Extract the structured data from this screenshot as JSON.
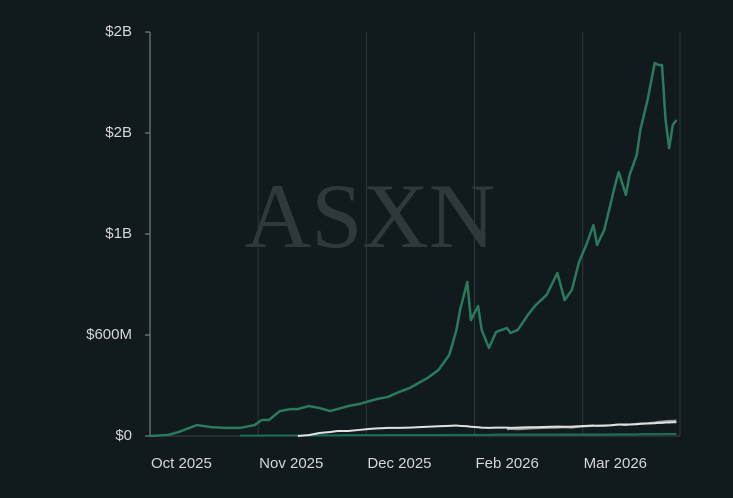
{
  "chart_data": {
    "type": "line",
    "watermark": "ASXN",
    "x": [
      0,
      5,
      8,
      13,
      17,
      21,
      25,
      29,
      31,
      33,
      36,
      39,
      41,
      44,
      47,
      50,
      52,
      55,
      58,
      61,
      63,
      66,
      69,
      72,
      74,
      77,
      80,
      83,
      85,
      86,
      88,
      89,
      91,
      92,
      94,
      96,
      99,
      100,
      102,
      105,
      107,
      110,
      113,
      115,
      117,
      119,
      121,
      123,
      124,
      126,
      128,
      129,
      130,
      132,
      133,
      135,
      136,
      138,
      140,
      141,
      142,
      143,
      144,
      145,
      146
    ],
    "xlim": [
      0,
      147
    ],
    "xticks": [
      {
        "value": 0,
        "label": "Oct 2025"
      },
      {
        "value": 30,
        "label": "Nov 2025"
      },
      {
        "value": 60,
        "label": "Dec 2025"
      },
      {
        "value": 90,
        "label": "Feb 2026"
      },
      {
        "value": 120,
        "label": "Mar 2026"
      }
    ],
    "ylim": [
      0,
      2400000000
    ],
    "yticks": [
      {
        "value": 0,
        "label": "$0"
      },
      {
        "value": 600000000,
        "label": "$600M"
      },
      {
        "value": 1200000000,
        "label": "$1B"
      },
      {
        "value": 1800000000,
        "label": "$2B"
      },
      {
        "value": 2400000000,
        "label": "$2B"
      }
    ],
    "grid": true,
    "series": [
      {
        "color": "#2a7a5e",
        "values": [
          0,
          6000000.0,
          24000000.0,
          65000000.0,
          53000000.0,
          48000000.0,
          48000000.0,
          65000000.0,
          95000000.0,
          95000000.0,
          148000000.0,
          160000000.0,
          160000000.0,
          178000000.0,
          166000000.0,
          148000000.0,
          160000000.0,
          178000000.0,
          190000000.0,
          208000000.0,
          220000000.0,
          232000000.0,
          261000000.0,
          285000000.0,
          309000000.0,
          345000000.0,
          392000000.0,
          481000000.0,
          630000000.0,
          748000000.0,
          915000000.0,
          689000000.0,
          772000000.0,
          630000000.0,
          523000000.0,
          618000000.0,
          641000000.0,
          612000000.0,
          630000000.0,
          725000000.0,
          778000000.0,
          838000000.0,
          968000000.0,
          808000000.0,
          867000000.0,
          1034000000.0,
          1135000000.0,
          1253000000.0,
          1135000000.0,
          1224000000.0,
          1402000000.0,
          1491000000.0,
          1568000000.0,
          1432000000.0,
          1550000000.0,
          1669000000.0,
          1818000000.0,
          1996000000.0,
          2216000000.0,
          2204000000.0,
          2204000000.0,
          1877000000.0,
          1711000000.0,
          1847000000.0,
          1877000000.0
        ]
      },
      {
        "color": "#1d6e57",
        "values": [
          null,
          null,
          null,
          null,
          null,
          null,
          2000000.0,
          2000000.0,
          2000000.0,
          3000000.0,
          3000000.0,
          3000000.0,
          3000000.0,
          4000000.0,
          4000000.0,
          4000000.0,
          4000000.0,
          5000000.0,
          5000000.0,
          5000000.0,
          5000000.0,
          6000000.0,
          6000000.0,
          6000000.0,
          6000000.0,
          6000000.0,
          6000000.0,
          7000000.0,
          7000000.0,
          7000000.0,
          7000000.0,
          7000000.0,
          7000000.0,
          7000000.0,
          7000000.0,
          8000000.0,
          8000000.0,
          8000000.0,
          8000000.0,
          8000000.0,
          8000000.0,
          8000000.0,
          8000000.0,
          9000000.0,
          9000000.0,
          9000000.0,
          9000000.0,
          9000000.0,
          9000000.0,
          9000000.0,
          10000000.0,
          10000000.0,
          10000000.0,
          10000000.0,
          10000000.0,
          10000000.0,
          11000000.0,
          11000000.0,
          11000000.0,
          11000000.0,
          11000000.0,
          12000000.0,
          12000000.0,
          12000000.0,
          12000000.0
        ]
      },
      {
        "color": "#9a9a9a",
        "values": [
          null,
          null,
          null,
          null,
          null,
          null,
          null,
          null,
          null,
          null,
          null,
          null,
          null,
          null,
          null,
          null,
          null,
          null,
          null,
          null,
          null,
          null,
          null,
          null,
          null,
          null,
          null,
          null,
          null,
          null,
          null,
          null,
          null,
          null,
          null,
          null,
          40000000.0,
          42000000.0,
          40000000.0,
          44000000.0,
          46000000.0,
          48000000.0,
          50000000.0,
          52000000.0,
          50000000.0,
          55000000.0,
          58000000.0,
          60000000.0,
          62000000.0,
          60000000.0,
          64000000.0,
          66000000.0,
          68000000.0,
          70000000.0,
          68000000.0,
          72000000.0,
          74000000.0,
          76000000.0,
          80000000.0,
          84000000.0,
          86000000.0,
          88000000.0,
          90000000.0,
          90000000.0,
          92000000.0
        ]
      },
      {
        "color": "#e0e0e0",
        "values": [
          null,
          null,
          null,
          null,
          null,
          null,
          null,
          null,
          null,
          null,
          null,
          null,
          0,
          5000000.0,
          18000000.0,
          24000000.0,
          30000000.0,
          30000000.0,
          36000000.0,
          42000000.0,
          45000000.0,
          48000000.0,
          48000000.0,
          50000000.0,
          52000000.0,
          55000000.0,
          58000000.0,
          60000000.0,
          62000000.0,
          60000000.0,
          58000000.0,
          55000000.0,
          52000000.0,
          50000000.0,
          48000000.0,
          50000000.0,
          50000000.0,
          48000000.0,
          50000000.0,
          52000000.0,
          52000000.0,
          54000000.0,
          56000000.0,
          55000000.0,
          56000000.0,
          58000000.0,
          60000000.0,
          62000000.0,
          60000000.0,
          62000000.0,
          64000000.0,
          66000000.0,
          68000000.0,
          66000000.0,
          68000000.0,
          70000000.0,
          72000000.0,
          74000000.0,
          76000000.0,
          78000000.0,
          78000000.0,
          80000000.0,
          80000000.0,
          82000000.0,
          82000000.0
        ]
      }
    ]
  }
}
